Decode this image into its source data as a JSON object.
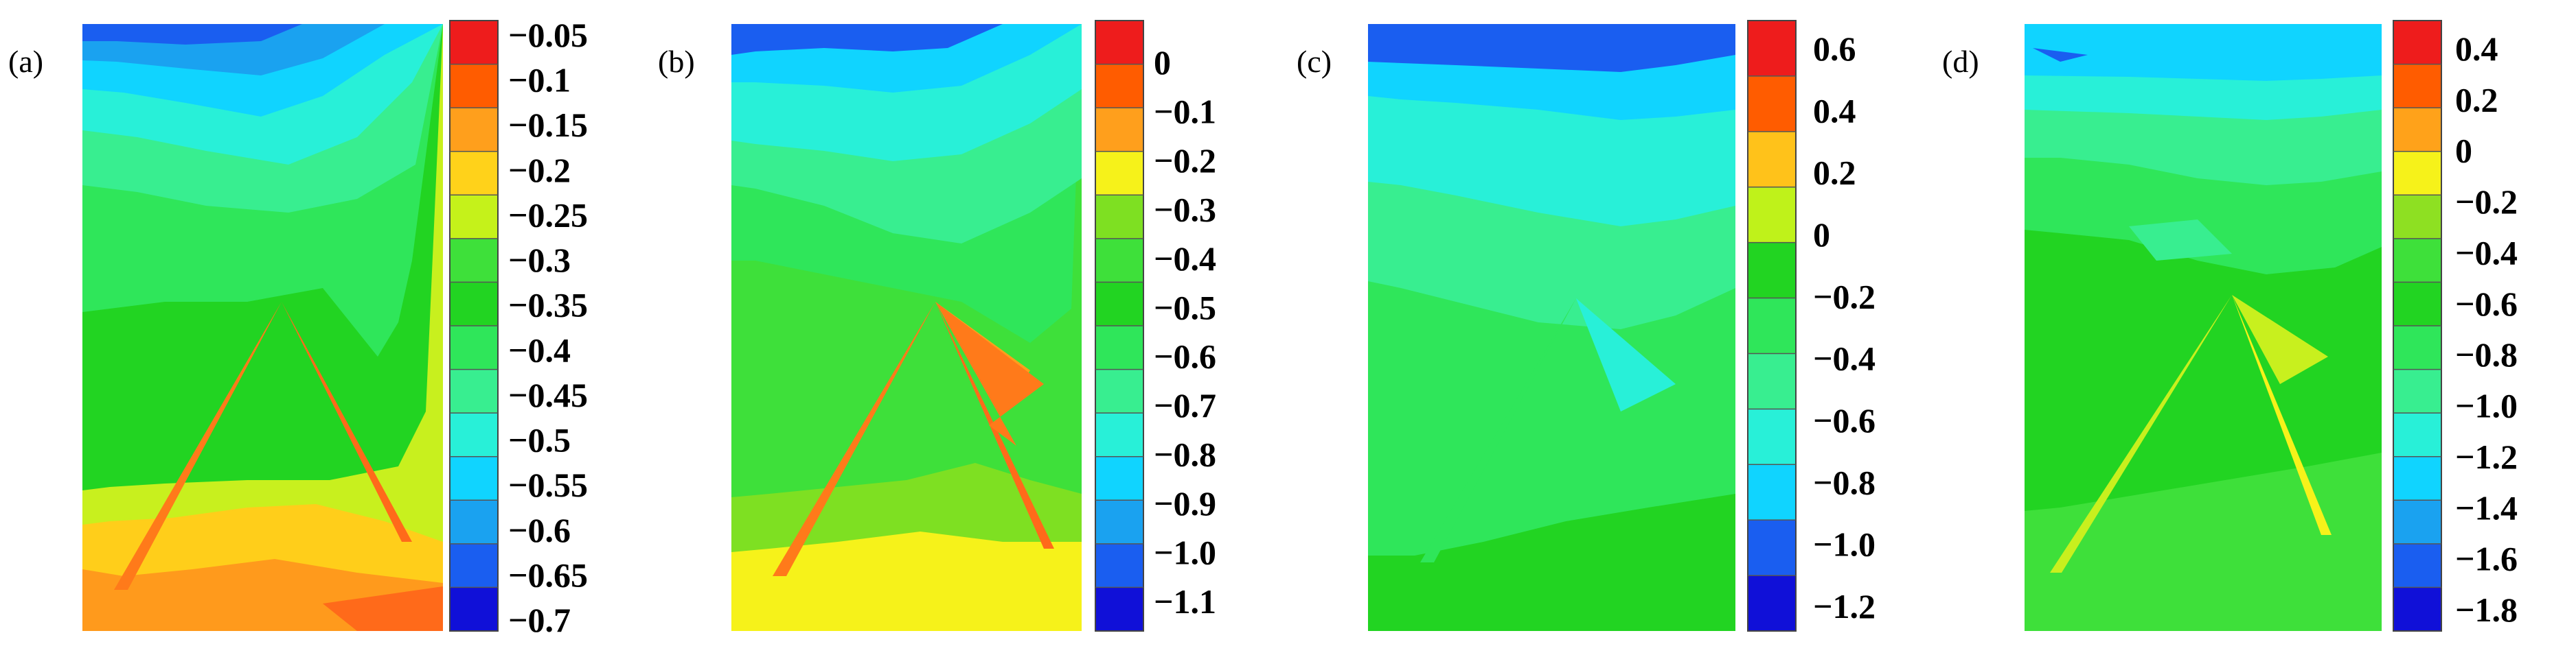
{
  "chart_data": [
    {
      "type": "heatmap",
      "panel_label": "(a)",
      "colorbar": {
        "ticks": [
          "−0.05",
          "−0.1",
          "−0.15",
          "−0.2",
          "−0.25",
          "−0.3",
          "−0.35",
          "−0.4",
          "−0.45",
          "−0.5",
          "−0.55",
          "−0.6",
          "−0.65",
          "−0.7"
        ],
        "colors": [
          "#ee1c1c",
          "#ff5c00",
          "#ff9f1c",
          "#ffd21a",
          "#c5f21a",
          "#3ee03a",
          "#22d422",
          "#2fe65a",
          "#38ee90",
          "#28f0d8",
          "#10d4ff",
          "#1aa2f0",
          "#1a5ef0",
          "#1010d8"
        ]
      }
    },
    {
      "type": "heatmap",
      "panel_label": "(b)",
      "colorbar": {
        "ticks": [
          "0",
          "−0.1",
          "−0.2",
          "−0.3",
          "−0.4",
          "−0.5",
          "−0.6",
          "−0.7",
          "−0.8",
          "−0.9",
          "−1.0",
          "−1.1"
        ],
        "colors": [
          "#ee1c1c",
          "#ff5c00",
          "#ff9f1c",
          "#f6f21a",
          "#7ee022",
          "#3ee03a",
          "#22d422",
          "#2fe65a",
          "#38ee90",
          "#28f0d8",
          "#10d4ff",
          "#1aa2f0",
          "#1a5ef0",
          "#1010d8"
        ]
      }
    },
    {
      "type": "heatmap",
      "panel_label": "(c)",
      "colorbar": {
        "ticks": [
          "0.6",
          "0.4",
          "0.2",
          "0",
          "−0.2",
          "−0.4",
          "−0.6",
          "−0.8",
          "−1.0",
          "−1.2"
        ],
        "colors": [
          "#ee1c1c",
          "#ff5c00",
          "#ffc21a",
          "#bff21a",
          "#22d422",
          "#2fe65a",
          "#38ee90",
          "#28f0d8",
          "#10d4ff",
          "#1a5ef0",
          "#1010d8"
        ]
      }
    },
    {
      "type": "heatmap",
      "panel_label": "(d)",
      "colorbar": {
        "ticks": [
          "0.4",
          "0.2",
          "0",
          "−0.2",
          "−0.4",
          "−0.6",
          "−0.8",
          "−1.0",
          "−1.2",
          "−1.4",
          "−1.6",
          "−1.8"
        ],
        "colors": [
          "#ee1c1c",
          "#ff5c00",
          "#ffa21a",
          "#f6f21a",
          "#8ee022",
          "#3ee03a",
          "#22d422",
          "#2fe65a",
          "#38ee90",
          "#28f0d8",
          "#10d4ff",
          "#1aa2f0",
          "#1a5ef0",
          "#1010d8"
        ]
      }
    }
  ]
}
